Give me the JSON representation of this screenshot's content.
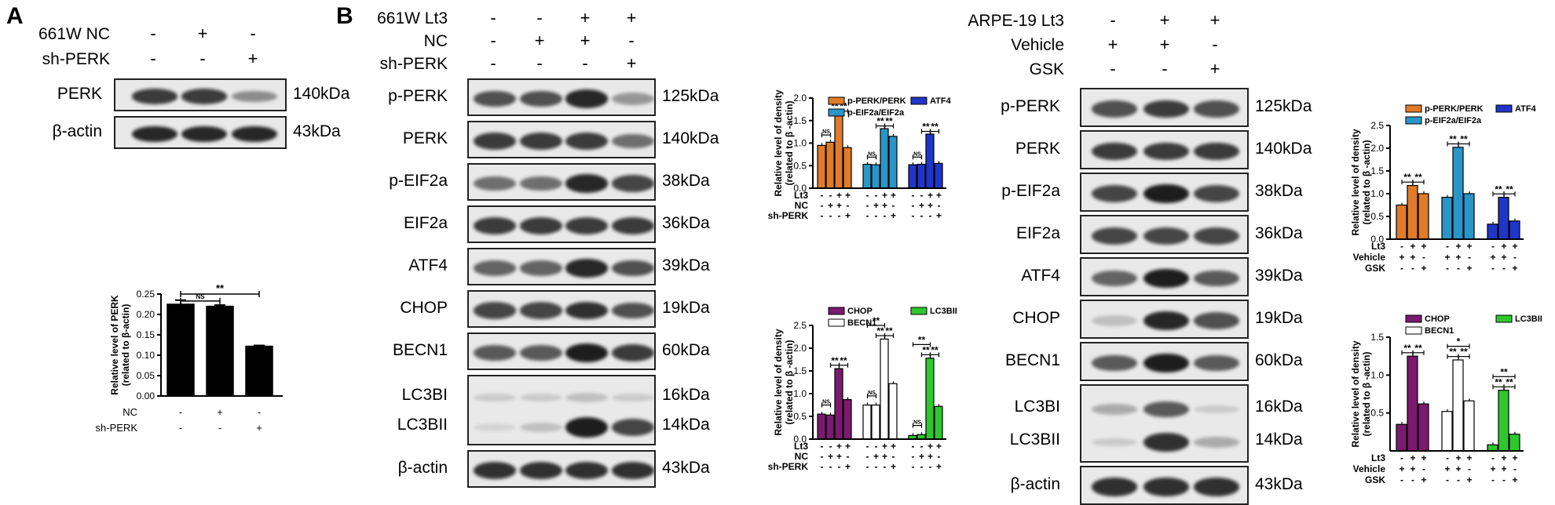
{
  "panelA": {
    "letter": "A",
    "conditions": [
      {
        "label": "661W NC",
        "signs": [
          "-",
          "+",
          "-"
        ]
      },
      {
        "label": "sh-PERK",
        "signs": [
          "-",
          "-",
          "+"
        ]
      }
    ],
    "blots": [
      {
        "name": "PERK",
        "kda": "140kDa",
        "intensity": [
          0.85,
          0.85,
          0.45
        ]
      },
      {
        "name": "β-actin",
        "kda": "43kDa",
        "intensity": [
          0.95,
          0.95,
          0.95
        ]
      }
    ]
  },
  "panelB": {
    "letter": "B",
    "conditions": [
      {
        "label": "661W  Lt3",
        "signs": [
          "-",
          "-",
          "+",
          "+"
        ]
      },
      {
        "label": "NC",
        "signs": [
          "-",
          "+",
          "+",
          "-"
        ]
      },
      {
        "label": "sh-PERK",
        "signs": [
          "-",
          "-",
          "-",
          "+"
        ]
      }
    ],
    "blots": [
      {
        "name": "p-PERK",
        "kda": "125kDa",
        "intensity": [
          0.75,
          0.75,
          0.95,
          0.4
        ]
      },
      {
        "name": "PERK",
        "kda": "140kDa",
        "intensity": [
          0.85,
          0.85,
          0.85,
          0.6
        ]
      },
      {
        "name": "p-EIF2a",
        "kda": "38kDa",
        "intensity": [
          0.6,
          0.6,
          0.95,
          0.8
        ]
      },
      {
        "name": "EIF2a",
        "kda": "36kDa",
        "intensity": [
          0.85,
          0.85,
          0.85,
          0.85
        ]
      },
      {
        "name": "ATF4",
        "kda": "39kDa",
        "intensity": [
          0.65,
          0.65,
          0.95,
          0.75
        ]
      },
      {
        "name": "CHOP",
        "kda": "19kDa",
        "intensity": [
          0.8,
          0.8,
          0.9,
          0.75
        ]
      },
      {
        "name": "BECN1",
        "kda": "60kDa",
        "intensity": [
          0.7,
          0.7,
          1.0,
          0.85
        ]
      },
      {
        "name": "β-actin",
        "kda": "43kDa",
        "intensity": [
          0.9,
          0.9,
          0.9,
          0.9
        ]
      }
    ],
    "lc3": {
      "name1": "LC3BI",
      "kda1": "16kDa",
      "name2": "LC3BII",
      "kda2": "14kDa",
      "intensity1": [
        0.15,
        0.15,
        0.2,
        0.15
      ],
      "intensity2": [
        0.1,
        0.2,
        1.0,
        0.8
      ]
    }
  },
  "panelC": {
    "conditions": [
      {
        "label": "ARPE-19 Lt3",
        "signs": [
          "-",
          "+",
          "+"
        ]
      },
      {
        "label": "Vehicle",
        "signs": [
          "+",
          "+",
          "-"
        ]
      },
      {
        "label": "GSK",
        "signs": [
          "-",
          "-",
          "+"
        ]
      }
    ],
    "blots": [
      {
        "name": "p-PERK",
        "kda": "125kDa",
        "intensity": [
          0.75,
          0.85,
          0.75
        ]
      },
      {
        "name": "PERK",
        "kda": "140kDa",
        "intensity": [
          0.85,
          0.85,
          0.85
        ]
      },
      {
        "name": "p-EIF2a",
        "kda": "38kDa",
        "intensity": [
          0.8,
          1.0,
          0.8
        ]
      },
      {
        "name": "EIF2a",
        "kda": "36kDa",
        "intensity": [
          0.8,
          0.8,
          0.8
        ]
      },
      {
        "name": "ATF4",
        "kda": "39kDa",
        "intensity": [
          0.65,
          1.0,
          0.7
        ]
      },
      {
        "name": "CHOP",
        "kda": "19kDa",
        "intensity": [
          0.2,
          0.95,
          0.75
        ]
      },
      {
        "name": "BECN1",
        "kda": "60kDa",
        "intensity": [
          0.7,
          1.0,
          0.7
        ]
      },
      {
        "name": "β-actin",
        "kda": "43kDa",
        "intensity": [
          0.9,
          0.9,
          0.9
        ]
      }
    ],
    "lc3": {
      "name1": "LC3BI",
      "kda1": "16kDa",
      "name2": "LC3BII",
      "kda2": "14kDa",
      "intensity1": [
        0.3,
        0.7,
        0.15
      ],
      "intensity2": [
        0.15,
        0.9,
        0.3
      ]
    }
  },
  "chart_data": [
    {
      "id": "A-perk",
      "type": "bar",
      "ylabel": "Relative level of PERK\n(related to β-actin)",
      "ylim": [
        0,
        0.25
      ],
      "yticks": [
        "0.00",
        "0.05",
        "0.10",
        "0.15",
        "0.20",
        "0.25"
      ],
      "values": [
        0.225,
        0.22,
        0.122
      ],
      "errors": [
        0.01,
        0.003,
        0.002
      ],
      "colors": [
        "#000000",
        "#000000",
        "#000000"
      ],
      "xrows": [
        {
          "label": "NC",
          "signs": [
            "-",
            "+",
            "-"
          ]
        },
        {
          "label": "sh-PERK",
          "signs": [
            "-",
            "-",
            "+"
          ]
        }
      ],
      "sig": [
        {
          "from": 0,
          "to": 1,
          "label": "NS",
          "level": 0.233
        },
        {
          "from": 0,
          "to": 2,
          "label": "**",
          "level": 0.25
        }
      ]
    },
    {
      "id": "B-upr",
      "type": "bar",
      "ylabel": "Relative level of density\n(related to β -actin)",
      "ylim": [
        0,
        2.0
      ],
      "yticks": [
        "0.0",
        "0.5",
        "1.0",
        "1.5",
        "2.0"
      ],
      "legend": [
        {
          "name": "p-PERK/PERK",
          "color": "#e07b2a"
        },
        {
          "name": "ATF4",
          "color": "#1f36c8"
        },
        {
          "name": "p-EIF2a/EIF2a",
          "color": "#2a96c8"
        }
      ],
      "series": [
        {
          "name": "p-PERK/PERK",
          "color": "#e07b2a",
          "values": [
            0.95,
            1.02,
            1.65,
            0.9
          ]
        },
        {
          "name": "p-EIF2a/EIF2a",
          "color": "#2a96c8",
          "values": [
            0.53,
            0.52,
            1.32,
            1.15
          ]
        },
        {
          "name": "ATF4",
          "color": "#1f36c8",
          "values": [
            0.52,
            0.53,
            1.2,
            0.55
          ]
        }
      ],
      "xrows": [
        {
          "label": "Lt3",
          "signs": [
            "-",
            "-",
            "+",
            "+"
          ]
        },
        {
          "label": "NC",
          "signs": [
            "-",
            "+",
            "+",
            "-"
          ]
        },
        {
          "label": "sh-PERK",
          "signs": [
            "-",
            "-",
            "-",
            "+"
          ]
        }
      ],
      "sig_groups": [
        [
          {
            "from": 0,
            "to": 1,
            "label": "NS"
          },
          {
            "from": 1,
            "to": 2,
            "label": "**"
          },
          {
            "from": 2,
            "to": 3,
            "label": "**"
          }
        ],
        [
          {
            "from": 0,
            "to": 1,
            "label": "NS"
          },
          {
            "from": 1,
            "to": 2,
            "label": "**"
          },
          {
            "from": 2,
            "to": 3,
            "label": "**"
          }
        ],
        [
          {
            "from": 0,
            "to": 1,
            "label": "NS"
          },
          {
            "from": 1,
            "to": 2,
            "label": "**"
          },
          {
            "from": 2,
            "to": 3,
            "label": "**"
          }
        ]
      ]
    },
    {
      "id": "B-autophagy",
      "type": "bar",
      "ylabel": "Relative level of density\n(related to β -actin)",
      "ylim": [
        0,
        2.5
      ],
      "yticks": [
        "0.0",
        "0.5",
        "1.0",
        "1.5",
        "2.0",
        "2.5"
      ],
      "legend": [
        {
          "name": "CHOP",
          "color": "#7b1a6e"
        },
        {
          "name": "LC3BII",
          "color": "#2ec82e"
        },
        {
          "name": "BECN1",
          "color": "#ffffff"
        }
      ],
      "series": [
        {
          "name": "CHOP",
          "color": "#7b1a6e",
          "values": [
            0.55,
            0.53,
            1.55,
            0.87
          ]
        },
        {
          "name": "BECN1",
          "color": "#ffffff",
          "values": [
            0.75,
            0.75,
            2.2,
            1.22
          ]
        },
        {
          "name": "LC3BII",
          "color": "#2ec82e",
          "values": [
            0.08,
            0.1,
            1.78,
            0.72
          ]
        }
      ],
      "xrows": [
        {
          "label": "Lt3",
          "signs": [
            "-",
            "-",
            "+",
            "+"
          ]
        },
        {
          "label": "NC",
          "signs": [
            "-",
            "+",
            "+",
            "-"
          ]
        },
        {
          "label": "sh-PERK",
          "signs": [
            "-",
            "-",
            "-",
            "+"
          ]
        }
      ],
      "sig_groups": [
        [
          {
            "from": 0,
            "to": 1,
            "label": "NS"
          },
          {
            "from": 1,
            "to": 2,
            "label": "**"
          },
          {
            "from": 2,
            "to": 3,
            "label": "**"
          }
        ],
        [
          {
            "from": 0,
            "to": 1,
            "label": "NS"
          },
          {
            "from": 1,
            "to": 2,
            "label": "**"
          },
          {
            "from": 2,
            "to": 3,
            "label": "**"
          },
          {
            "from": 0,
            "to": 2,
            "label": "**"
          }
        ],
        [
          {
            "from": 0,
            "to": 1,
            "label": "NS"
          },
          {
            "from": 1,
            "to": 2,
            "label": "**"
          },
          {
            "from": 2,
            "to": 3,
            "label": "**"
          },
          {
            "from": 0,
            "to": 2,
            "label": "**"
          }
        ]
      ]
    },
    {
      "id": "C-upr",
      "type": "bar",
      "ylabel": "Relative level of density\n(related to β -actin)",
      "ylim": [
        0,
        2.5
      ],
      "yticks": [
        "0.0",
        "0.5",
        "1.0",
        "1.5",
        "2.0",
        "2.5"
      ],
      "legend": [
        {
          "name": "p-PERK/PERK",
          "color": "#e07b2a"
        },
        {
          "name": "ATF4",
          "color": "#1f36c8"
        },
        {
          "name": "p-EIF2a/EIF2a",
          "color": "#2a96c8"
        }
      ],
      "series": [
        {
          "name": "p-PERK/PERK",
          "color": "#e07b2a",
          "values": [
            0.75,
            1.18,
            1.0
          ]
        },
        {
          "name": "p-EIF2a/EIF2a",
          "color": "#2a96c8",
          "values": [
            0.92,
            2.02,
            1.0
          ]
        },
        {
          "name": "ATF4",
          "color": "#1f36c8",
          "values": [
            0.33,
            0.92,
            0.4
          ]
        }
      ],
      "xrows": [
        {
          "label": "Lt3",
          "signs": [
            "-",
            "+",
            "+"
          ]
        },
        {
          "label": "Vehicle",
          "signs": [
            "+",
            "+",
            "-"
          ]
        },
        {
          "label": "GSK",
          "signs": [
            "-",
            "-",
            "+"
          ]
        }
      ],
      "sig_groups": [
        [
          {
            "from": 0,
            "to": 1,
            "label": "**"
          },
          {
            "from": 1,
            "to": 2,
            "label": "**"
          }
        ],
        [
          {
            "from": 0,
            "to": 1,
            "label": "**"
          },
          {
            "from": 1,
            "to": 2,
            "label": "**"
          }
        ],
        [
          {
            "from": 0,
            "to": 1,
            "label": "**"
          },
          {
            "from": 1,
            "to": 2,
            "label": "**"
          }
        ]
      ]
    },
    {
      "id": "C-autophagy",
      "type": "bar",
      "ylabel": "Relative level of density\n(related to β -actin)",
      "ylim": [
        0,
        1.5
      ],
      "yticks": [
        "0.5",
        "1.0",
        "1.5"
      ],
      "ymin_tick": 0.5,
      "legend": [
        {
          "name": "CHOP",
          "color": "#7b1a6e"
        },
        {
          "name": "LC3BII",
          "color": "#2ec82e"
        },
        {
          "name": "BECN1",
          "color": "#ffffff"
        }
      ],
      "series": [
        {
          "name": "CHOP",
          "color": "#7b1a6e",
          "values": [
            0.35,
            1.25,
            0.62
          ]
        },
        {
          "name": "BECN1",
          "color": "#ffffff",
          "values": [
            0.52,
            1.2,
            0.66
          ]
        },
        {
          "name": "LC3BII",
          "color": "#2ec82e",
          "values": [
            0.08,
            0.8,
            0.22
          ]
        }
      ],
      "xrows": [
        {
          "label": "Lt3",
          "signs": [
            "-",
            "+",
            "+"
          ]
        },
        {
          "label": "Vehicle",
          "signs": [
            "+",
            "+",
            "-"
          ]
        },
        {
          "label": "GSK",
          "signs": [
            "-",
            "-",
            "+"
          ]
        }
      ],
      "sig_groups": [
        [
          {
            "from": 0,
            "to": 1,
            "label": "**"
          },
          {
            "from": 1,
            "to": 2,
            "label": "**"
          }
        ],
        [
          {
            "from": 0,
            "to": 1,
            "label": "**"
          },
          {
            "from": 1,
            "to": 2,
            "label": "**"
          },
          {
            "from": 0,
            "to": 2,
            "label": "*"
          }
        ],
        [
          {
            "from": 0,
            "to": 1,
            "label": "**"
          },
          {
            "from": 1,
            "to": 2,
            "label": "**"
          },
          {
            "from": 0,
            "to": 2,
            "label": "**"
          }
        ]
      ]
    }
  ]
}
